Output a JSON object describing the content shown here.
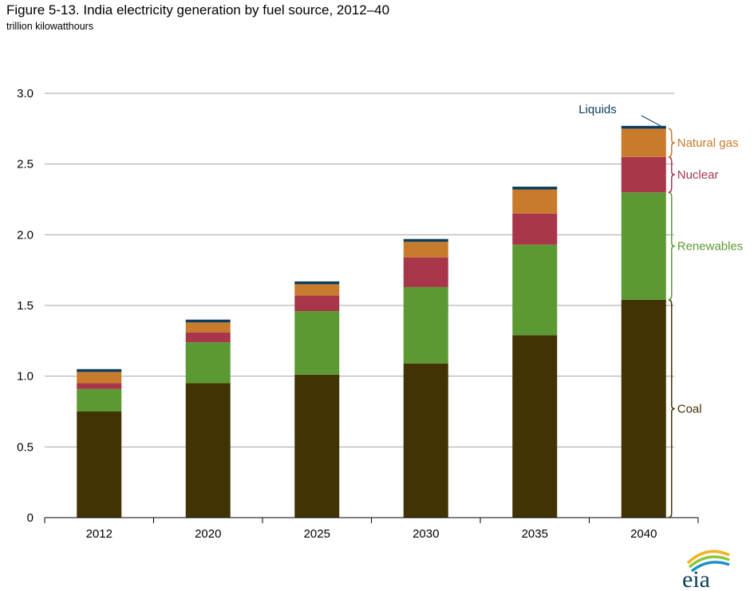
{
  "title": "Figure 5-13. India electricity generation by fuel source, 2012–40",
  "subtitle": "trillion kilowatthours",
  "logo_text": "eia",
  "colors": {
    "Coal": "#413303",
    "Renewables": "#5c9933",
    "Nuclear": "#a8364a",
    "Natural gas": "#c87a2d",
    "Liquids": "#0b3e5a",
    "grid": "#a6a6a6",
    "axis": "#000000"
  },
  "chart_data": {
    "type": "bar",
    "stacked": true,
    "categories": [
      "2012",
      "2020",
      "2025",
      "2030",
      "2035",
      "2040"
    ],
    "series": [
      {
        "name": "Coal",
        "values": [
          0.75,
          0.95,
          1.01,
          1.09,
          1.29,
          1.54
        ]
      },
      {
        "name": "Renewables",
        "values": [
          0.16,
          0.29,
          0.45,
          0.54,
          0.64,
          0.76
        ]
      },
      {
        "name": "Nuclear",
        "values": [
          0.04,
          0.07,
          0.11,
          0.21,
          0.22,
          0.25
        ]
      },
      {
        "name": "Natural gas",
        "values": [
          0.08,
          0.07,
          0.08,
          0.11,
          0.17,
          0.2
        ]
      },
      {
        "name": "Liquids",
        "values": [
          0.02,
          0.02,
          0.02,
          0.02,
          0.02,
          0.02
        ]
      }
    ],
    "title": "Figure 5-13. India electricity generation by fuel source, 2012–40",
    "ylabel": "trillion kilowatthours",
    "ylim": [
      0,
      3.0
    ],
    "yticks": [
      0,
      0.5,
      1.0,
      1.5,
      2.0,
      2.5,
      3.0
    ],
    "ytick_labels": [
      "0",
      "0.5",
      "1.0",
      "1.5",
      "2.0",
      "2.5",
      "3.0"
    ],
    "grid": true,
    "legend": "direct labels beside 2040 bar"
  }
}
